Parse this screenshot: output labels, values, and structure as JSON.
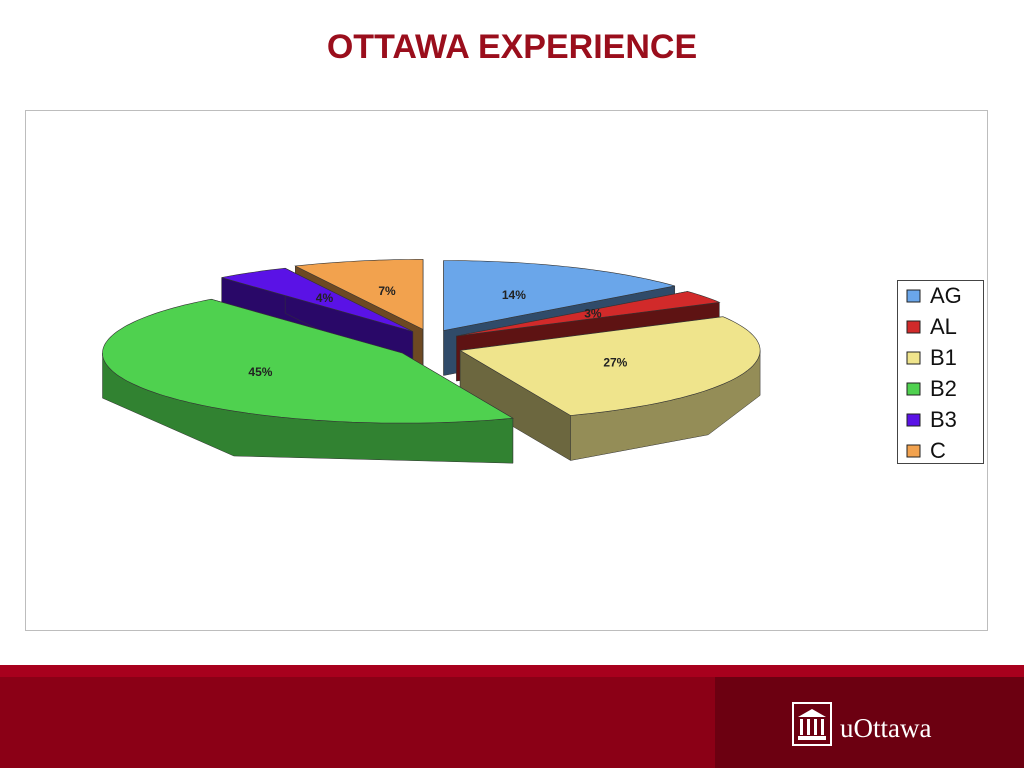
{
  "title": "OTTAWA EXPERIENCE",
  "chart_data": {
    "type": "pie",
    "categories": [
      "AG",
      "AL",
      "B1",
      "B2",
      "B3",
      "C"
    ],
    "values": [
      14,
      3,
      27,
      45,
      4,
      7
    ],
    "value_labels": [
      "14%",
      "3%",
      "27%",
      "45%",
      "4%",
      "7%"
    ],
    "colors": [
      "#6aa6ea",
      "#d12a2a",
      "#efe48c",
      "#4fd14f",
      "#5a12e6",
      "#f2a24e"
    ],
    "legend": "right"
  },
  "footer": {
    "logo_text": "uOttawa"
  }
}
